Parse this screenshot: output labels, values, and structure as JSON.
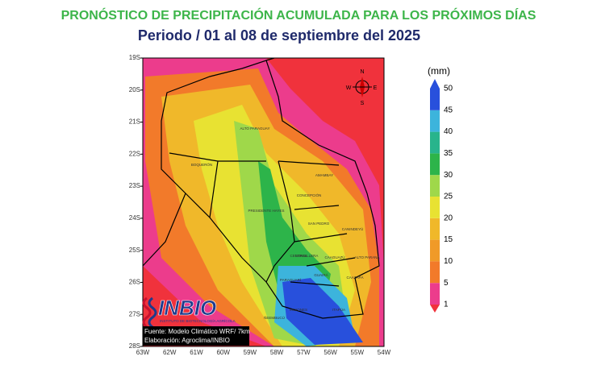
{
  "header": {
    "title": "PRONÓSTICO DE PRECIPITACIÓN ACUMULADA PARA LOS PRÓXIMOS DÍAS",
    "subtitle": "Periodo /  01  al 08 de septiembre del 2025"
  },
  "map": {
    "lat_labels": [
      "19S",
      "20S",
      "21S",
      "22S",
      "23S",
      "24S",
      "25S",
      "26S",
      "27S",
      "28S"
    ],
    "lon_labels": [
      "63W",
      "62W",
      "61W",
      "60W",
      "59W",
      "58W",
      "57W",
      "56W",
      "55W",
      "54W"
    ],
    "regions": [
      "ALTO PARAGUAY",
      "BOQUERÓN",
      "PRESIDENTE HAYES",
      "AMAMBAY",
      "CONCEPCIÓN",
      "CANINDEYÚ",
      "SAN PEDRO",
      "CAAGUAZÚ",
      "CORDILLERA",
      "GUAIRÁ",
      "ALTO PARANÁ",
      "CAAZAPÁ",
      "PARAGUARÍ",
      "CENTRAL",
      "ÑEEMBUCÚ",
      "MISIONES",
      "ITAPÚA"
    ],
    "compass": [
      "N",
      "E",
      "S",
      "W"
    ]
  },
  "legend": {
    "unit": "(mm)",
    "levels": [
      {
        "value": 1,
        "color": "#f0323c"
      },
      {
        "value": 5,
        "color": "#ec3c8c"
      },
      {
        "value": 10,
        "color": "#f27a2a"
      },
      {
        "value": 15,
        "color": "#f09a28"
      },
      {
        "value": 20,
        "color": "#f0b82a"
      },
      {
        "value": 25,
        "color": "#e8e232"
      },
      {
        "value": 30,
        "color": "#9fd84a"
      },
      {
        "value": 35,
        "color": "#2db44a"
      },
      {
        "value": 40,
        "color": "#28b48c"
      },
      {
        "value": 45,
        "color": "#3cb4dc"
      },
      {
        "value": 50,
        "color": "#2850dc"
      }
    ]
  },
  "footer": {
    "logo": "INBIO",
    "logo_sub": "INSTITUTO DE BIOTECNOLOGÍA AGRÍCOLA",
    "source": "Fuente: Modelo Climático WRF/ 7km",
    "credit": "Elaboración: Agroclima/INBIO"
  }
}
